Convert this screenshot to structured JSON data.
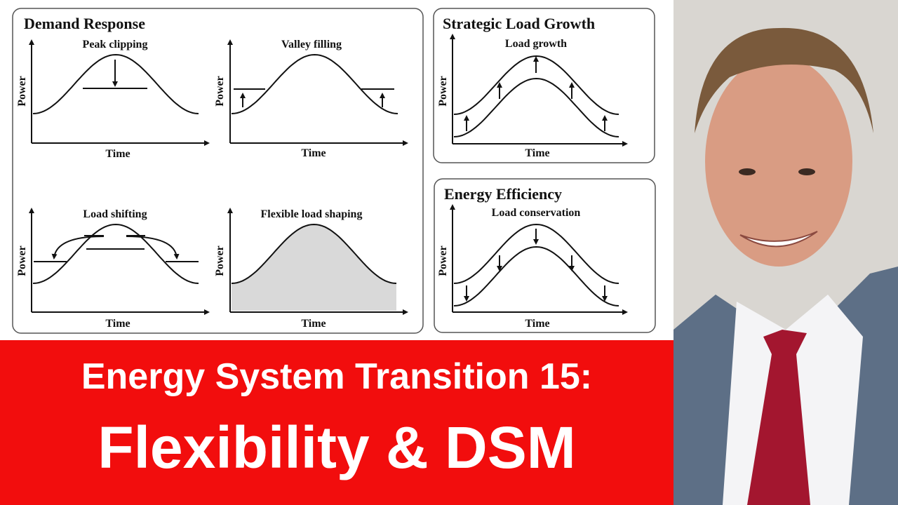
{
  "demand_response": {
    "title": "Demand Response",
    "panels": [
      {
        "title": "Peak clipping",
        "ylabel": "Power",
        "xlabel": "Time"
      },
      {
        "title": "Valley filling",
        "ylabel": "Power",
        "xlabel": "Time"
      },
      {
        "title": "Load shifting",
        "ylabel": "Power",
        "xlabel": "Time"
      },
      {
        "title": "Flexible load shaping",
        "ylabel": "Power",
        "xlabel": "Time"
      }
    ]
  },
  "strategic_load_growth": {
    "title": "Strategic Load Growth",
    "panel": {
      "title": "Load growth",
      "ylabel": "Power",
      "xlabel": "Time"
    }
  },
  "energy_efficiency": {
    "title": "Energy Efficiency",
    "panel": {
      "title": "Load conservation",
      "ylabel": "Power",
      "xlabel": "Time"
    }
  },
  "banner": {
    "line1": "Energy System Transition 15:",
    "line2": "Flexibility & DSM",
    "color": "#f20d0d"
  }
}
